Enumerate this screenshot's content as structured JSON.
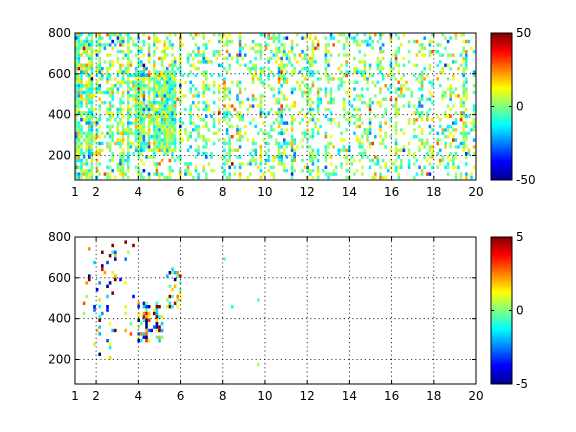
{
  "chart_data": [
    {
      "type": "heatmap",
      "title": "",
      "xlabel": "",
      "ylabel": "",
      "xlim": [
        1,
        20
      ],
      "ylim": [
        80,
        800
      ],
      "xticks": [
        1,
        2,
        4,
        6,
        8,
        10,
        12,
        14,
        16,
        18,
        20
      ],
      "yticks": [
        200,
        400,
        600,
        800
      ],
      "grid": true,
      "colormap": "jet",
      "colorbar": {
        "location": "right",
        "clim": [
          -50,
          50
        ],
        "ticks": [
          -50,
          0,
          50
        ]
      },
      "blank_color": "#ffffff",
      "density_regions": [
        {
          "x": [
            1.0,
            1.8
          ],
          "y": [
            80,
            800
          ],
          "density": 0.8,
          "value_spread": 14
        },
        {
          "x": [
            1.8,
            3.6
          ],
          "y": [
            80,
            800
          ],
          "density": 0.55,
          "value_spread": 12
        },
        {
          "x": [
            3.6,
            5.8
          ],
          "y": [
            220,
            620
          ],
          "density": 0.95,
          "value_spread": 10
        },
        {
          "x": [
            3.6,
            6.0
          ],
          "y": [
            80,
            800
          ],
          "density": 0.4,
          "value_spread": 12
        },
        {
          "x": [
            6.0,
            20.0
          ],
          "y": [
            80,
            800
          ],
          "density": 0.3,
          "value_spread": 12
        }
      ]
    },
    {
      "type": "heatmap",
      "title": "",
      "xlabel": "",
      "ylabel": "",
      "xlim": [
        1,
        20
      ],
      "ylim": [
        80,
        800
      ],
      "xticks": [
        1,
        2,
        4,
        6,
        8,
        10,
        12,
        14,
        16,
        18,
        20
      ],
      "yticks": [
        200,
        400,
        600,
        800
      ],
      "grid": true,
      "colormap": "jet",
      "colorbar": {
        "location": "right",
        "clim": [
          -5,
          5
        ],
        "ticks": [
          -5,
          0,
          5
        ]
      },
      "blank_color": "#ffffff",
      "density_regions": [
        {
          "x": [
            4.0,
            5.2
          ],
          "y": [
            280,
            480
          ],
          "density": 0.7,
          "value_spread": 4
        },
        {
          "x": [
            5.2,
            6.0
          ],
          "y": [
            450,
            650
          ],
          "density": 0.35,
          "value_spread": 3
        },
        {
          "x": [
            1.3,
            3.8
          ],
          "y": [
            200,
            780
          ],
          "density": 0.06,
          "value_spread": 4
        },
        {
          "x": [
            8.0,
            10.6
          ],
          "y": [
            100,
            780
          ],
          "density": 0.01,
          "value_spread": 2
        }
      ]
    }
  ]
}
